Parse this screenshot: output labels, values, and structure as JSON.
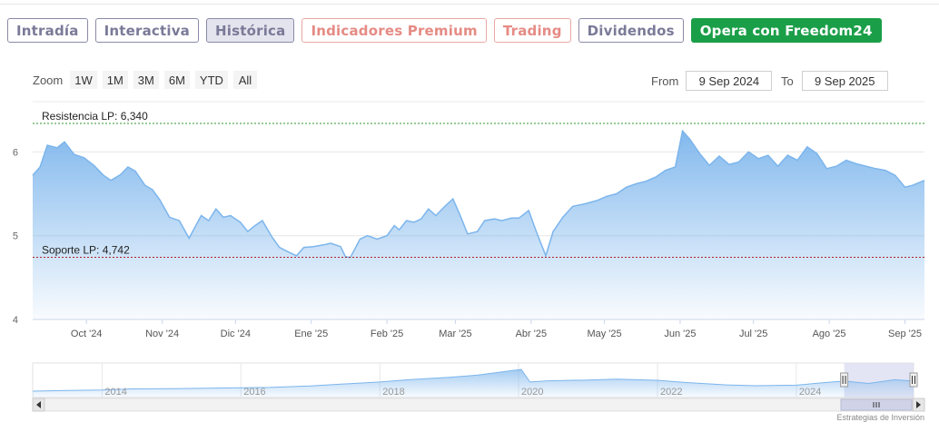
{
  "tabs": [
    {
      "label": "Intradía",
      "style": "normal"
    },
    {
      "label": "Interactiva",
      "style": "normal"
    },
    {
      "label": "Histórica",
      "style": "active"
    },
    {
      "label": "Indicadores Premium",
      "style": "premium"
    },
    {
      "label": "Trading",
      "style": "premium"
    },
    {
      "label": "Dividendos",
      "style": "normal"
    },
    {
      "label": "Opera con Freedom24",
      "style": "cta"
    }
  ],
  "zoom": {
    "label": "Zoom",
    "buttons": [
      "1W",
      "1M",
      "3M",
      "6M",
      "YTD",
      "All"
    ]
  },
  "range": {
    "from_label": "From",
    "from_value": "9 Sep 2024",
    "to_label": "To",
    "to_value": "9 Sep 2025"
  },
  "credit": "Estrategias de Inversión",
  "colors": {
    "line": "#7cb5ec",
    "resistance": "#2e9a2e",
    "support": "#b0202a"
  },
  "chart_data": [
    {
      "type": "area",
      "x_start": "2024-09-09",
      "x_end": "2025-09-09",
      "ylim": [
        4,
        6.6
      ],
      "y_ticks": [
        4,
        5,
        6
      ],
      "x_ticks": [
        {
          "date": "2024-10-01",
          "label": "Oct '24"
        },
        {
          "date": "2024-11-01",
          "label": "Nov '24"
        },
        {
          "date": "2024-12-01",
          "label": "Dic '24"
        },
        {
          "date": "2025-01-01",
          "label": "Ene '25"
        },
        {
          "date": "2025-02-01",
          "label": "Feb '25"
        },
        {
          "date": "2025-03-01",
          "label": "Mar '25"
        },
        {
          "date": "2025-04-01",
          "label": "Abr '25"
        },
        {
          "date": "2025-05-01",
          "label": "May '25"
        },
        {
          "date": "2025-06-01",
          "label": "Jun '25"
        },
        {
          "date": "2025-07-01",
          "label": "Jul '25"
        },
        {
          "date": "2025-08-01",
          "label": "Ago '25"
        },
        {
          "date": "2025-09-01",
          "label": "Sep '25"
        }
      ],
      "annotations": [
        {
          "label": "Resistencia LP: 6,340",
          "value": 6.34,
          "kind": "resistance"
        },
        {
          "label": "Soporte LP: 4,742",
          "value": 4.742,
          "kind": "support"
        }
      ],
      "points": [
        [
          "2024-09-09",
          5.72
        ],
        [
          "2024-09-12",
          5.82
        ],
        [
          "2024-09-15",
          6.08
        ],
        [
          "2024-09-19",
          6.05
        ],
        [
          "2024-09-22",
          6.12
        ],
        [
          "2024-09-26",
          5.97
        ],
        [
          "2024-09-30",
          5.93
        ],
        [
          "2024-10-04",
          5.84
        ],
        [
          "2024-10-08",
          5.72
        ],
        [
          "2024-10-11",
          5.66
        ],
        [
          "2024-10-15",
          5.73
        ],
        [
          "2024-10-18",
          5.82
        ],
        [
          "2024-10-21",
          5.77
        ],
        [
          "2024-10-25",
          5.6
        ],
        [
          "2024-10-28",
          5.55
        ],
        [
          "2024-10-31",
          5.43
        ],
        [
          "2024-11-04",
          5.22
        ],
        [
          "2024-11-08",
          5.18
        ],
        [
          "2024-11-12",
          4.97
        ],
        [
          "2024-11-14",
          5.08
        ],
        [
          "2024-11-17",
          5.24
        ],
        [
          "2024-11-20",
          5.18
        ],
        [
          "2024-11-23",
          5.32
        ],
        [
          "2024-11-26",
          5.22
        ],
        [
          "2024-11-29",
          5.24
        ],
        [
          "2024-12-03",
          5.16
        ],
        [
          "2024-12-06",
          5.05
        ],
        [
          "2024-12-09",
          5.12
        ],
        [
          "2024-12-12",
          5.18
        ],
        [
          "2024-12-16",
          4.98
        ],
        [
          "2024-12-19",
          4.86
        ],
        [
          "2024-12-23",
          4.8
        ],
        [
          "2024-12-26",
          4.76
        ],
        [
          "2024-12-29",
          4.86
        ],
        [
          "2025-01-02",
          4.87
        ],
        [
          "2025-01-06",
          4.89
        ],
        [
          "2025-01-09",
          4.91
        ],
        [
          "2025-01-13",
          4.87
        ],
        [
          "2025-01-15",
          4.75
        ],
        [
          "2025-01-17",
          4.74
        ],
        [
          "2025-01-21",
          4.96
        ],
        [
          "2025-01-24",
          5.0
        ],
        [
          "2025-01-28",
          4.96
        ],
        [
          "2025-02-01",
          5.0
        ],
        [
          "2025-02-04",
          5.12
        ],
        [
          "2025-02-06",
          5.07
        ],
        [
          "2025-02-09",
          5.18
        ],
        [
          "2025-02-12",
          5.16
        ],
        [
          "2025-02-15",
          5.2
        ],
        [
          "2025-02-18",
          5.32
        ],
        [
          "2025-02-21",
          5.24
        ],
        [
          "2025-02-25",
          5.36
        ],
        [
          "2025-02-28",
          5.44
        ],
        [
          "2025-03-03",
          5.24
        ],
        [
          "2025-03-06",
          5.02
        ],
        [
          "2025-03-10",
          5.05
        ],
        [
          "2025-03-13",
          5.18
        ],
        [
          "2025-03-17",
          5.2
        ],
        [
          "2025-03-20",
          5.18
        ],
        [
          "2025-03-24",
          5.21
        ],
        [
          "2025-03-27",
          5.21
        ],
        [
          "2025-03-31",
          5.3
        ],
        [
          "2025-04-03",
          5.06
        ],
        [
          "2025-04-07",
          4.76
        ],
        [
          "2025-04-10",
          5.05
        ],
        [
          "2025-04-14",
          5.22
        ],
        [
          "2025-04-18",
          5.35
        ],
        [
          "2025-04-23",
          5.38
        ],
        [
          "2025-04-28",
          5.42
        ],
        [
          "2025-05-02",
          5.47
        ],
        [
          "2025-05-06",
          5.5
        ],
        [
          "2025-05-10",
          5.58
        ],
        [
          "2025-05-14",
          5.62
        ],
        [
          "2025-05-18",
          5.65
        ],
        [
          "2025-05-22",
          5.7
        ],
        [
          "2025-05-26",
          5.78
        ],
        [
          "2025-05-30",
          5.82
        ],
        [
          "2025-06-02",
          6.25
        ],
        [
          "2025-06-05",
          6.15
        ],
        [
          "2025-06-09",
          5.98
        ],
        [
          "2025-06-13",
          5.84
        ],
        [
          "2025-06-17",
          5.95
        ],
        [
          "2025-06-21",
          5.85
        ],
        [
          "2025-06-25",
          5.88
        ],
        [
          "2025-06-29",
          6.0
        ],
        [
          "2025-07-03",
          5.92
        ],
        [
          "2025-07-07",
          5.96
        ],
        [
          "2025-07-11",
          5.83
        ],
        [
          "2025-07-15",
          5.96
        ],
        [
          "2025-07-19",
          5.9
        ],
        [
          "2025-07-23",
          6.06
        ],
        [
          "2025-07-27",
          5.98
        ],
        [
          "2025-07-31",
          5.8
        ],
        [
          "2025-08-04",
          5.83
        ],
        [
          "2025-08-08",
          5.9
        ],
        [
          "2025-08-12",
          5.86
        ],
        [
          "2025-08-16",
          5.83
        ],
        [
          "2025-08-20",
          5.8
        ],
        [
          "2025-08-24",
          5.78
        ],
        [
          "2025-08-28",
          5.72
        ],
        [
          "2025-09-01",
          5.58
        ],
        [
          "2025-09-04",
          5.6
        ],
        [
          "2025-09-09",
          5.66
        ]
      ]
    },
    {
      "type": "area",
      "role": "navigator",
      "x_start": "2013-01-01",
      "x_end": "2025-09-09",
      "ylim": [
        0,
        12
      ],
      "x_ticks": [
        {
          "date": "2014-01-01",
          "label": "2014"
        },
        {
          "date": "2016-01-01",
          "label": "2016"
        },
        {
          "date": "2018-01-01",
          "label": "2018"
        },
        {
          "date": "2020-01-01",
          "label": "2020"
        },
        {
          "date": "2022-01-01",
          "label": "2022"
        },
        {
          "date": "2024-01-01",
          "label": "2024"
        }
      ],
      "points": [
        [
          "2013-01-01",
          2.2
        ],
        [
          "2013-06-01",
          2.4
        ],
        [
          "2014-01-01",
          2.6
        ],
        [
          "2014-06-01",
          3.0
        ],
        [
          "2015-01-01",
          3.1
        ],
        [
          "2015-06-01",
          3.2
        ],
        [
          "2016-01-01",
          3.4
        ],
        [
          "2016-06-01",
          3.5
        ],
        [
          "2017-01-01",
          4.0
        ],
        [
          "2017-06-01",
          4.6
        ],
        [
          "2018-01-01",
          5.4
        ],
        [
          "2018-06-01",
          6.2
        ],
        [
          "2019-01-01",
          7.0
        ],
        [
          "2019-06-01",
          7.8
        ],
        [
          "2019-12-01",
          9.4
        ],
        [
          "2020-01-15",
          9.8
        ],
        [
          "2020-03-01",
          5.4
        ],
        [
          "2020-06-01",
          5.8
        ],
        [
          "2021-01-01",
          6.1
        ],
        [
          "2021-06-01",
          6.4
        ],
        [
          "2022-01-01",
          6.0
        ],
        [
          "2022-06-01",
          5.2
        ],
        [
          "2023-01-01",
          4.4
        ],
        [
          "2023-06-01",
          4.1
        ],
        [
          "2024-01-01",
          4.3
        ],
        [
          "2024-06-01",
          5.2
        ],
        [
          "2024-09-09",
          5.7
        ],
        [
          "2025-01-15",
          4.9
        ],
        [
          "2025-06-02",
          6.2
        ],
        [
          "2025-09-09",
          5.7
        ]
      ],
      "selected_from": "2024-09-09",
      "selected_to": "2025-09-09"
    }
  ]
}
